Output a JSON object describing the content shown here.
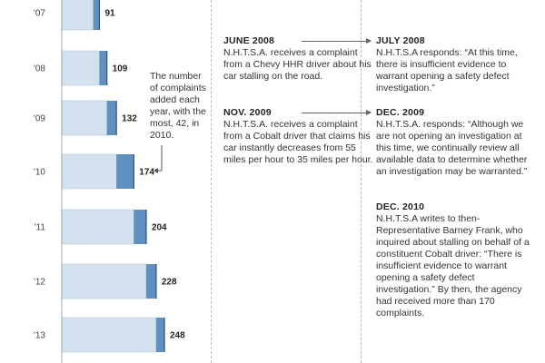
{
  "chart_data": {
    "type": "bar",
    "orientation": "horizontal",
    "stacked": true,
    "categories": [
      "'07",
      "'08",
      "'09",
      "'10",
      "'11",
      "'12",
      "'13"
    ],
    "series": [
      {
        "values": [
          76,
          91,
          109,
          132,
          174,
          204,
          228
        ]
      },
      {
        "values": [
          15,
          18,
          23,
          42,
          30,
          24,
          20
        ]
      }
    ],
    "totals": [
      "91",
      "109",
      "132",
      "174",
      "204",
      "228",
      "248"
    ],
    "xlim": [
      0,
      248
    ],
    "colors": {
      "previous": "#d4e1ee",
      "added": "#5e90c2",
      "previous_border": "#b9cbdc"
    },
    "annotation": "The number of complaints added each year, with the most, 42, in 2010."
  },
  "events": [
    {
      "date": "JUNE 2008",
      "text": "N.H.T.S.A. receives a complaint from a Chevy HHR driver about his car stalling on the road."
    },
    {
      "date": "NOV. 2009",
      "text": "N.H.T.S.A. receives a complaint from a Cobalt driver that claims his car instantly decreases from 55 miles per hour to 35 miles per hour."
    }
  ],
  "responses": [
    {
      "date": "JULY 2008",
      "text": "N.H.T.S.A responds: “At this time, there is insufficient evidence to warrant opening a safety defect investigation.”"
    },
    {
      "date": "DEC. 2009",
      "text": "N.H.T.S.A. responds: “Although we are not opening an investigation at this time, we continually review all available data to determine whether an investigation may be warranted.”"
    },
    {
      "date": "DEC. 2010",
      "text": "N.H.T.S.A writes to then-Representative Barney Frank, who inquired about stalling on behalf of a constituent Cobalt driver: “There is insufficient evidence to warrant opening a safety defect investigation.” By then, the agency had received more than 170 complaints."
    }
  ]
}
